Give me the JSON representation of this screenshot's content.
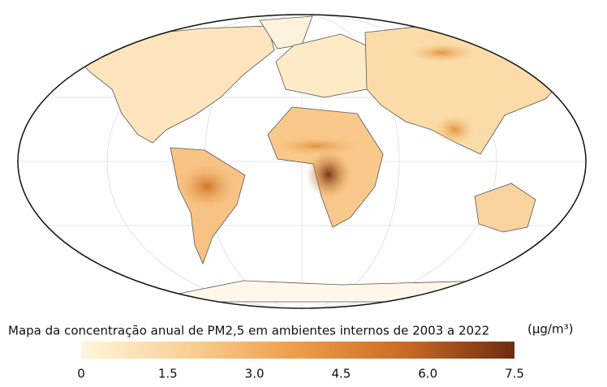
{
  "map": {
    "title": "Mapa da concentração anual de PM2,5 em ambientes internos de 2003 a 2022",
    "unit": "(µg/m³)",
    "colorbar": {
      "range": [
        0,
        7.5
      ],
      "ticks": [
        0,
        1.5,
        {
          "value": 3,
          "label": "3.0"
        },
        4.5,
        {
          "value": 6,
          "label": "6.0"
        },
        7.5
      ],
      "colors": [
        "#fff6dc",
        "#f9cf94",
        "#ee9c4a",
        "#c96a24",
        "#6e2c10"
      ]
    }
  }
}
